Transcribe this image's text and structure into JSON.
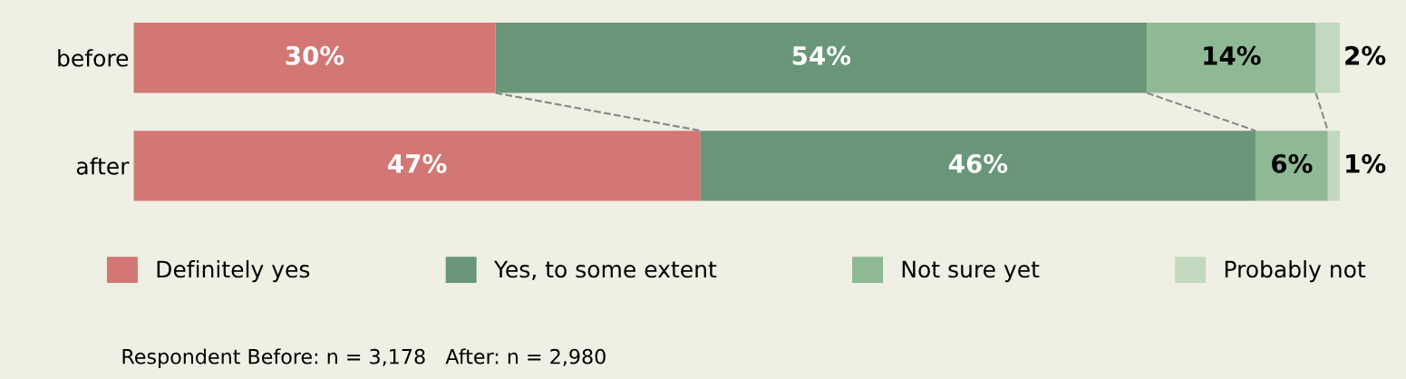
{
  "chart_data": {
    "type": "bar",
    "orientation": "horizontal",
    "stacked": true,
    "categories": [
      "before",
      "after"
    ],
    "series": [
      {
        "name": "Definitely yes",
        "color": "#d27774",
        "values": [
          30,
          47
        ],
        "value_labels": [
          "30%",
          "47%"
        ]
      },
      {
        "name": "Yes, to some extent",
        "color": "#699678",
        "values": [
          54,
          46
        ],
        "value_labels": [
          "54%",
          "46%"
        ]
      },
      {
        "name": "Not sure yet",
        "color": "#8fb995",
        "values": [
          14,
          6
        ],
        "value_labels": [
          "14%",
          "6%"
        ]
      },
      {
        "name": "Probably not",
        "color": "#c2d9bf",
        "values": [
          2,
          1
        ],
        "value_labels": [
          "2%",
          "1%"
        ]
      }
    ],
    "xlim": [
      0,
      100
    ],
    "tick_labels": "y",
    "grid": false,
    "legend": "bottom",
    "annotations": [
      "Respondent Before: n = 3,178   After: n = 2,980"
    ]
  }
}
